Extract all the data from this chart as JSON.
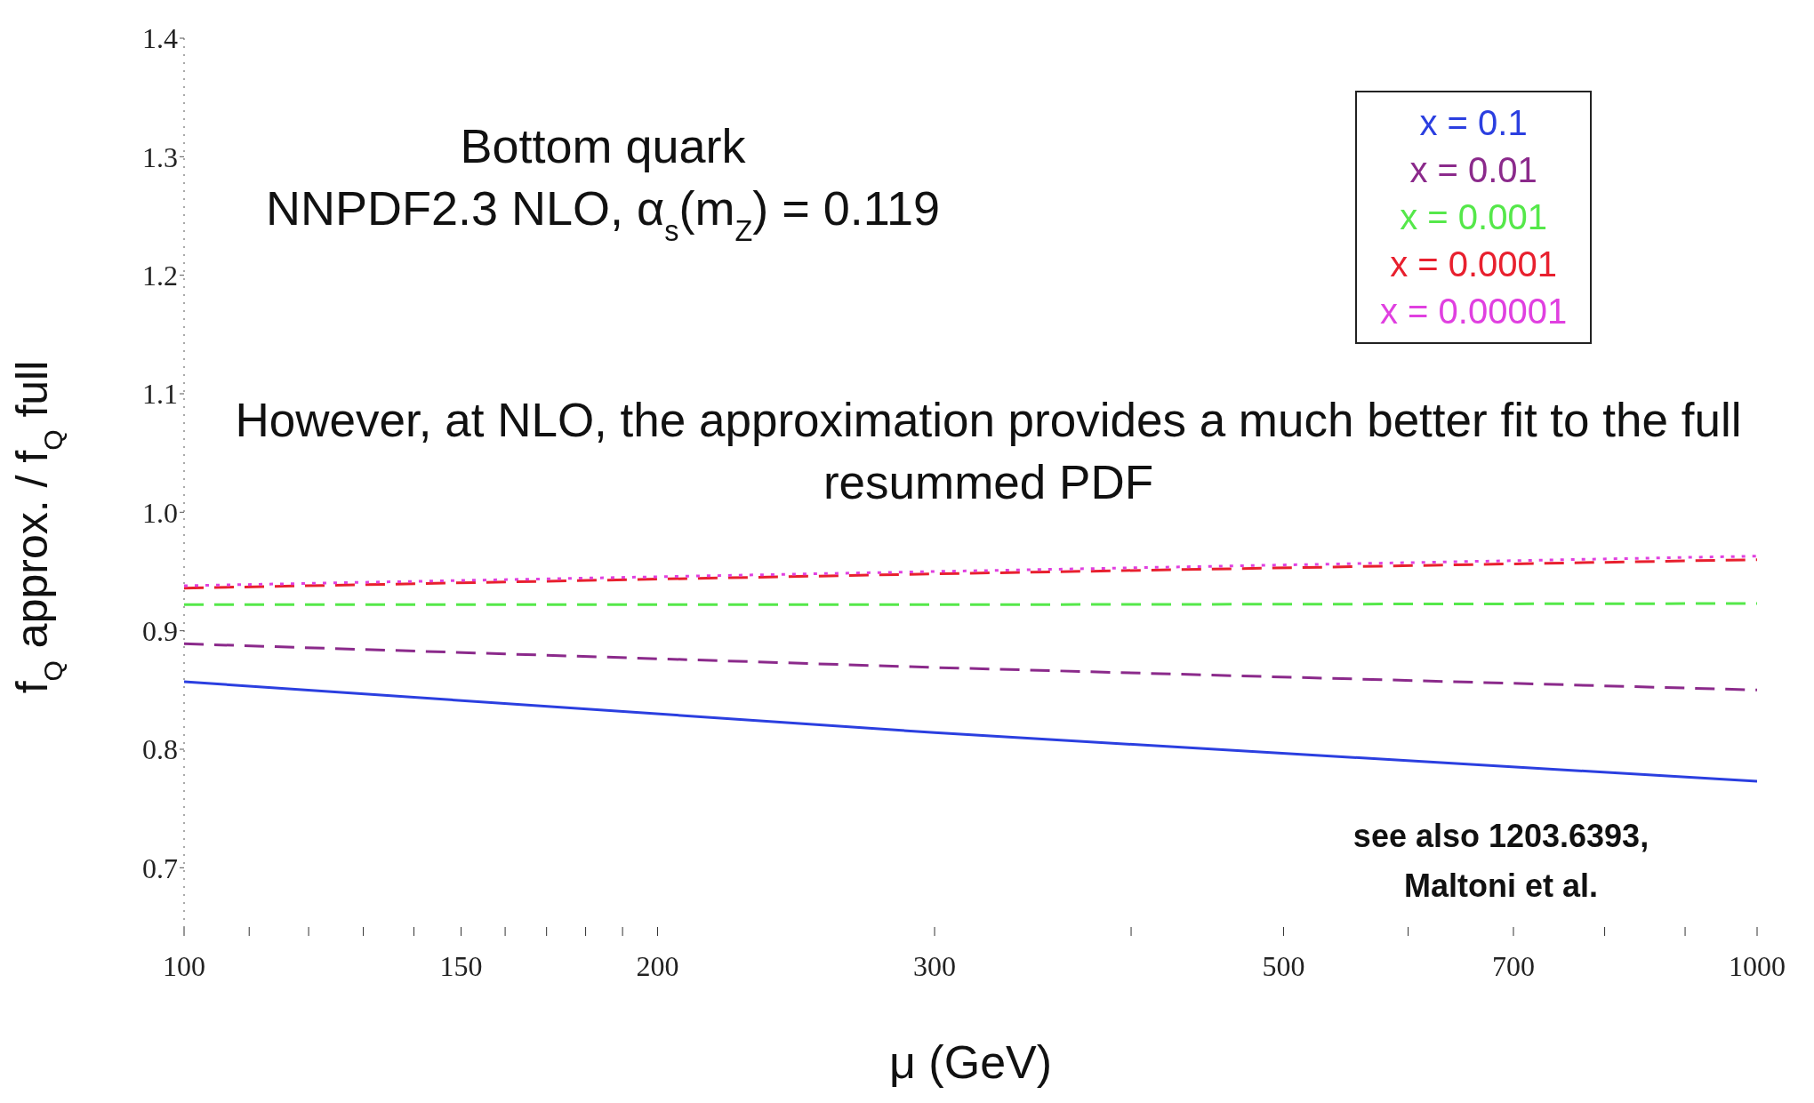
{
  "chart_data": {
    "type": "line",
    "title": "Bottom quark",
    "subtitle": "NNPDF2.3 NLO, α$_{s}$(m$_{Z}$) = 0.119",
    "xlabel": "μ (GeV)",
    "ylabel": "f$_{Q}$ approx. / f$_{Q}$ full",
    "annotations": [
      "However, at NLO, the approximation provides a much better fit to the full resummed PDF",
      "see also 1203.6393, Maltoni et al."
    ],
    "x": [
      100,
      300,
      1000
    ],
    "series": [
      {
        "name": "x = 0.1",
        "color": "#2b3fe0",
        "line_style": "solid",
        "values": [
          0.857,
          0.814,
          0.773
        ]
      },
      {
        "name": "x = 0.01",
        "color": "#8b2a8b",
        "line_style": "dashed",
        "values": [
          0.889,
          0.869,
          0.85
        ]
      },
      {
        "name": "x = 0.001",
        "color": "#55e84a",
        "line_style": "dashed",
        "values": [
          0.922,
          0.922,
          0.923
        ]
      },
      {
        "name": "x = 0.0001",
        "color": "#e8202e",
        "line_style": "dashed",
        "values": [
          0.936,
          0.948,
          0.96
        ]
      },
      {
        "name": "x = 0.00001",
        "color": "#e040e0",
        "line_style": "dotted",
        "values": [
          0.938,
          0.95,
          0.963
        ]
      }
    ],
    "log": "x",
    "xlim": [
      100,
      1000
    ],
    "xticks": [
      100,
      {
        "value": 110,
        "label": null
      },
      {
        "value": 120,
        "label": null
      },
      {
        "value": 130,
        "label": null
      },
      {
        "value": 140,
        "label": null
      },
      150,
      {
        "value": 160,
        "label": null
      },
      {
        "value": 170,
        "label": null
      },
      {
        "value": 180,
        "label": null
      },
      {
        "value": 190,
        "label": null
      },
      200,
      300,
      {
        "value": 400,
        "label": null
      },
      500,
      {
        "value": 600,
        "label": null
      },
      700,
      {
        "value": 800,
        "label": null
      },
      {
        "value": 900,
        "label": null
      },
      1000
    ],
    "ylim": [
      0.65,
      1.4
    ],
    "yticks": [
      {
        "value": 0.7,
        "label": "0.7"
      },
      {
        "value": 0.8,
        "label": "0.8"
      },
      {
        "value": 0.9,
        "label": "0.9"
      },
      {
        "value": 1,
        "label": "1.0"
      },
      {
        "value": 1.1,
        "label": "1.1"
      },
      {
        "value": 1.2,
        "label": "1.2"
      },
      {
        "value": 1.3,
        "label": "1.3"
      },
      {
        "value": 1.4,
        "label": "1.4"
      }
    ],
    "grid": false,
    "legend": "top right",
    "marker": "none"
  }
}
